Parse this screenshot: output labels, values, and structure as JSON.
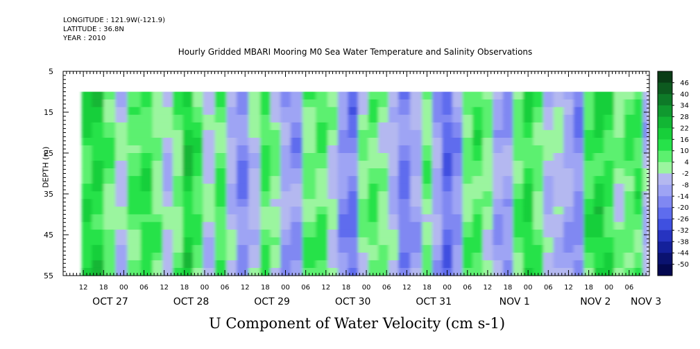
{
  "header": {
    "longitude": "LONGITUDE : 121.9W(-121.9)",
    "latitude": "LATITUDE : 36.8N",
    "year": "YEAR : 2010"
  },
  "chart_data": {
    "type": "heatmap",
    "title": "Hourly Gridded MBARI Mooring M0 Sea Water Temperature and Salinity Observations",
    "xlabel": "U Component of Water Velocity (cm s-1)",
    "ylabel": "DEPTH (m)",
    "y_range": [
      5,
      55
    ],
    "y_inverted": true,
    "y_ticks": [
      5,
      15,
      25,
      35,
      45,
      55
    ],
    "data_depth_range": [
      10,
      55
    ],
    "x_range_hours": [
      0,
      174
    ],
    "x_start_label": "OCT 26 06:00",
    "x_ticks": [
      {
        "h": 6,
        "label": "12"
      },
      {
        "h": 12,
        "label": "18"
      },
      {
        "h": 18,
        "label": "00"
      },
      {
        "h": 24,
        "label": "06"
      },
      {
        "h": 30,
        "label": "12"
      },
      {
        "h": 36,
        "label": "18"
      },
      {
        "h": 42,
        "label": "00"
      },
      {
        "h": 48,
        "label": "06"
      },
      {
        "h": 54,
        "label": "12"
      },
      {
        "h": 60,
        "label": "18"
      },
      {
        "h": 66,
        "label": "00"
      },
      {
        "h": 72,
        "label": "06"
      },
      {
        "h": 78,
        "label": "12"
      },
      {
        "h": 84,
        "label": "18"
      },
      {
        "h": 90,
        "label": "00"
      },
      {
        "h": 96,
        "label": "06"
      },
      {
        "h": 102,
        "label": "12"
      },
      {
        "h": 108,
        "label": "18"
      },
      {
        "h": 114,
        "label": "00"
      },
      {
        "h": 120,
        "label": "06"
      },
      {
        "h": 126,
        "label": "12"
      },
      {
        "h": 132,
        "label": "18"
      },
      {
        "h": 138,
        "label": "00"
      },
      {
        "h": 144,
        "label": "06"
      },
      {
        "h": 150,
        "label": "12"
      },
      {
        "h": 156,
        "label": "18"
      },
      {
        "h": 162,
        "label": "00"
      },
      {
        "h": 168,
        "label": "06"
      }
    ],
    "x_day_labels": [
      {
        "h": 14,
        "label": "OCT 27"
      },
      {
        "h": 38,
        "label": "OCT 28"
      },
      {
        "h": 62,
        "label": "OCT 29"
      },
      {
        "h": 86,
        "label": "OCT 30"
      },
      {
        "h": 110,
        "label": "OCT 31"
      },
      {
        "h": 134,
        "label": "NOV  1"
      },
      {
        "h": 158,
        "label": "NOV  2"
      },
      {
        "h": 173,
        "label": "NOV  3"
      }
    ],
    "columns": [
      {
        "h": 7,
        "v": 14
      },
      {
        "h": 10,
        "v": 16
      },
      {
        "h": 14,
        "v": 6
      },
      {
        "h": 17,
        "v": -4
      },
      {
        "h": 21,
        "v": 8
      },
      {
        "h": 25,
        "v": 12
      },
      {
        "h": 28,
        "v": 4
      },
      {
        "h": 31,
        "v": -6
      },
      {
        "h": 34,
        "v": 4
      },
      {
        "h": 37,
        "v": 18
      },
      {
        "h": 40,
        "v": 10
      },
      {
        "h": 43,
        "v": -4
      },
      {
        "h": 47,
        "v": 8
      },
      {
        "h": 50,
        "v": -6
      },
      {
        "h": 53,
        "v": -16
      },
      {
        "h": 57,
        "v": -4
      },
      {
        "h": 60,
        "v": 10
      },
      {
        "h": 63,
        "v": 2
      },
      {
        "h": 66,
        "v": -10
      },
      {
        "h": 69,
        "v": -14
      },
      {
        "h": 73,
        "v": 6
      },
      {
        "h": 77,
        "v": 8
      },
      {
        "h": 80,
        "v": -2
      },
      {
        "h": 83,
        "v": -14
      },
      {
        "h": 86,
        "v": -20
      },
      {
        "h": 89,
        "v": 2
      },
      {
        "h": 92,
        "v": 8
      },
      {
        "h": 95,
        "v": 2
      },
      {
        "h": 98,
        "v": -6
      },
      {
        "h": 101,
        "v": -18
      },
      {
        "h": 105,
        "v": -10
      },
      {
        "h": 108,
        "v": 4
      },
      {
        "h": 111,
        "v": -10
      },
      {
        "h": 114,
        "v": -22
      },
      {
        "h": 117,
        "v": -14
      },
      {
        "h": 120,
        "v": 6
      },
      {
        "h": 123,
        "v": 10
      },
      {
        "h": 126,
        "v": 2
      },
      {
        "h": 129,
        "v": -10
      },
      {
        "h": 132,
        "v": -12
      },
      {
        "h": 135,
        "v": 8
      },
      {
        "h": 138,
        "v": 14
      },
      {
        "h": 141,
        "v": 6
      },
      {
        "h": 144,
        "v": -6
      },
      {
        "h": 147,
        "v": -4
      },
      {
        "h": 150,
        "v": -10
      },
      {
        "h": 153,
        "v": -16
      },
      {
        "h": 156,
        "v": 10
      },
      {
        "h": 159,
        "v": 16
      },
      {
        "h": 162,
        "v": 12
      },
      {
        "h": 165,
        "v": 2
      },
      {
        "h": 168,
        "v": 8
      },
      {
        "h": 171,
        "v": 10
      },
      {
        "h": 173,
        "v": -8
      }
    ],
    "colorbar": {
      "labels": [
        "46",
        "40",
        "34",
        "28",
        "22",
        "16",
        "10",
        "4",
        "-2",
        "-8",
        "-14",
        "-20",
        "-26",
        "-32",
        "-38",
        "-44",
        "-50"
      ],
      "colors": [
        "#0a3c16",
        "#0d5a1f",
        "#0e7a28",
        "#10992f",
        "#12b634",
        "#17cf3a",
        "#26e24a",
        "#5cf06f",
        "#9bf59f",
        "#b4b8f0",
        "#9ea4f4",
        "#8088f2",
        "#5e6cee",
        "#3f50e0",
        "#2633c0",
        "#14209a",
        "#0a1270",
        "#040850"
      ],
      "color_stops": [
        46,
        40,
        34,
        28,
        22,
        16,
        10,
        4,
        -2,
        -8,
        -14,
        -20,
        -26,
        -32,
        -38,
        -44,
        -50
      ]
    }
  }
}
